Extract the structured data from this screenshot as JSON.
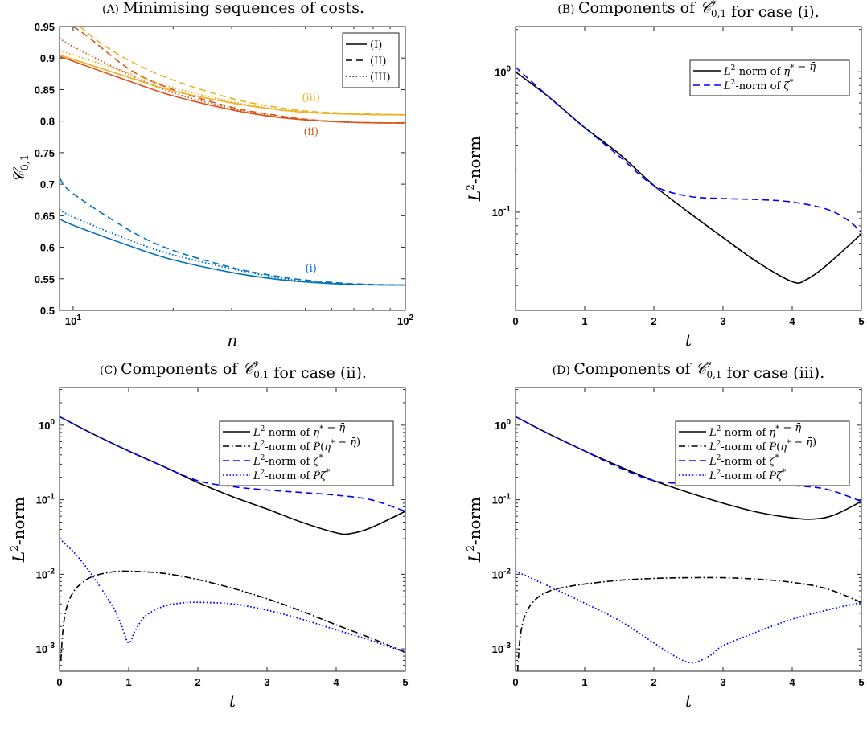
{
  "chart_data": [
    {
      "id": "A",
      "type": "line",
      "title": "(A) Minimising sequences of costs.",
      "xlabel": "n",
      "ylabel": "C_{0,1}",
      "xscale": "log",
      "xlim": [
        9.1,
        100
      ],
      "ylim": [
        0.5,
        0.95
      ],
      "grid": false,
      "legend_position": "top-right",
      "x_ticks": [
        {
          "v": 10,
          "label": "10",
          "sup": "1"
        },
        {
          "v": 100,
          "label": "10",
          "sup": "2"
        }
      ],
      "y_ticks": [
        {
          "v": 0.5,
          "label": "0.5"
        },
        {
          "v": 0.55,
          "label": "0.55"
        },
        {
          "v": 0.6,
          "label": "0.6"
        },
        {
          "v": 0.65,
          "label": "0.65"
        },
        {
          "v": 0.7,
          "label": "0.7"
        },
        {
          "v": 0.75,
          "label": "0.75"
        },
        {
          "v": 0.8,
          "label": "0.8"
        },
        {
          "v": 0.85,
          "label": "0.85"
        },
        {
          "v": 0.9,
          "label": "0.9"
        },
        {
          "v": 0.95,
          "label": "0.95"
        }
      ],
      "legend": [
        {
          "label": "(I)",
          "style": "solid",
          "color": "#000000"
        },
        {
          "label": "(II)",
          "style": "dashed",
          "color": "#000000"
        },
        {
          "label": "(III)",
          "style": "dotted",
          "color": "#000000"
        }
      ],
      "annotations": [
        {
          "text": "(iii)",
          "x": 52,
          "y": 0.832,
          "color": "#EDB120"
        },
        {
          "text": "(ii)",
          "x": 52,
          "y": 0.778,
          "color": "#D95319"
        },
        {
          "text": "(i)",
          "x": 52,
          "y": 0.561,
          "color": "#0072BD"
        }
      ],
      "series": [
        {
          "style": "solid",
          "color": "#0072BD",
          "x": [
            9.1,
            10,
            15,
            20,
            30,
            40,
            50,
            70,
            100
          ],
          "y": [
            0.645,
            0.635,
            0.601,
            0.58,
            0.56,
            0.55,
            0.545,
            0.541,
            0.54
          ]
        },
        {
          "style": "dashed",
          "color": "#0072BD",
          "x": [
            9.1,
            10,
            15,
            20,
            30,
            40,
            50,
            70,
            100
          ],
          "y": [
            0.71,
            0.685,
            0.625,
            0.595,
            0.568,
            0.555,
            0.548,
            0.542,
            0.54
          ]
        },
        {
          "style": "dotted",
          "color": "#0072BD",
          "x": [
            9.1,
            10,
            15,
            20,
            30,
            40,
            50,
            70,
            100
          ],
          "y": [
            0.66,
            0.648,
            0.61,
            0.588,
            0.566,
            0.553,
            0.546,
            0.541,
            0.54
          ]
        },
        {
          "style": "solid",
          "color": "#D95319",
          "x": [
            9.1,
            10,
            15,
            20,
            30,
            40,
            50,
            70,
            100
          ],
          "y": [
            0.903,
            0.895,
            0.862,
            0.84,
            0.818,
            0.807,
            0.802,
            0.798,
            0.797
          ]
        },
        {
          "style": "dashed",
          "color": "#D95319",
          "x": [
            10,
            11,
            15,
            20,
            30,
            40,
            50,
            70,
            100
          ],
          "y": [
            0.95,
            0.935,
            0.88,
            0.85,
            0.822,
            0.81,
            0.803,
            0.798,
            0.797
          ]
        },
        {
          "style": "dotted",
          "color": "#D95319",
          "x": [
            9.1,
            10,
            15,
            20,
            30,
            40,
            50,
            70,
            100
          ],
          "y": [
            0.932,
            0.918,
            0.872,
            0.845,
            0.82,
            0.808,
            0.802,
            0.798,
            0.797
          ]
        },
        {
          "style": "solid",
          "color": "#EDB120",
          "x": [
            9.1,
            10,
            15,
            20,
            30,
            40,
            50,
            70,
            100
          ],
          "y": [
            0.905,
            0.898,
            0.868,
            0.848,
            0.829,
            0.819,
            0.814,
            0.811,
            0.81
          ]
        },
        {
          "style": "dashed",
          "color": "#EDB120",
          "x": [
            10.5,
            12,
            15,
            20,
            30,
            40,
            50,
            70,
            100
          ],
          "y": [
            0.95,
            0.925,
            0.894,
            0.865,
            0.836,
            0.823,
            0.816,
            0.812,
            0.81
          ]
        },
        {
          "style": "dotted",
          "color": "#EDB120",
          "x": [
            9.1,
            10,
            15,
            20,
            30,
            40,
            50,
            70,
            100
          ],
          "y": [
            0.912,
            0.905,
            0.875,
            0.853,
            0.831,
            0.82,
            0.815,
            0.811,
            0.81
          ]
        }
      ]
    },
    {
      "id": "B",
      "type": "line",
      "title": "(B) Components of C*_{0,1} for case (i).",
      "xlabel": "t",
      "ylabel": "L2-norm",
      "yscale": "log",
      "xlim": [
        0,
        5
      ],
      "ylim": [
        0.02,
        2.1
      ],
      "grid": false,
      "legend_position": "top-right",
      "x_ticks": [
        {
          "v": 0,
          "label": "0"
        },
        {
          "v": 1,
          "label": "1"
        },
        {
          "v": 2,
          "label": "2"
        },
        {
          "v": 3,
          "label": "3"
        },
        {
          "v": 4,
          "label": "4"
        },
        {
          "v": 5,
          "label": "5"
        }
      ],
      "y_ticks": [
        {
          "v": 1,
          "label": "10",
          "sup": "0"
        },
        {
          "v": 0.1,
          "label": "10",
          "sup": "-1"
        }
      ],
      "legend": [
        {
          "label": "L²-norm of η* − η̄",
          "style": "solid",
          "color": "#000000"
        },
        {
          "label": "L²-norm of ζ*",
          "style": "dashed",
          "color": "#0000FF"
        }
      ],
      "series": [
        {
          "name": "L²-norm of η* − η̄",
          "style": "solid",
          "color": "#000000",
          "x": [
            0,
            0.5,
            1,
            1.5,
            2,
            2.5,
            3,
            3.5,
            4,
            4.2,
            4.5,
            5
          ],
          "y": [
            1.0,
            0.65,
            0.4,
            0.26,
            0.155,
            0.1,
            0.066,
            0.044,
            0.032,
            0.033,
            0.042,
            0.07
          ]
        },
        {
          "name": "L²-norm of ζ*",
          "style": "dashed",
          "color": "#0000FF",
          "x": [
            0,
            0.5,
            1,
            1.5,
            2,
            2.5,
            3,
            3.5,
            4,
            4.5,
            4.8,
            5
          ],
          "y": [
            1.08,
            0.65,
            0.4,
            0.25,
            0.155,
            0.13,
            0.125,
            0.123,
            0.118,
            0.105,
            0.088,
            0.072
          ]
        }
      ]
    },
    {
      "id": "C",
      "type": "line",
      "title": "(C) Components of C*_{0,1} for case (ii).",
      "xlabel": "t",
      "ylabel": "L2-norm",
      "yscale": "log",
      "xlim": [
        0,
        5
      ],
      "ylim": [
        0.0005,
        3.2
      ],
      "grid": false,
      "legend_position": "top-right",
      "x_ticks": [
        {
          "v": 0,
          "label": "0"
        },
        {
          "v": 1,
          "label": "1"
        },
        {
          "v": 2,
          "label": "2"
        },
        {
          "v": 3,
          "label": "3"
        },
        {
          "v": 4,
          "label": "4"
        },
        {
          "v": 5,
          "label": "5"
        }
      ],
      "y_ticks": [
        {
          "v": 1,
          "label": "10",
          "sup": "0"
        },
        {
          "v": 0.1,
          "label": "10",
          "sup": "-1"
        },
        {
          "v": 0.01,
          "label": "10",
          "sup": "-2"
        },
        {
          "v": 0.001,
          "label": "10",
          "sup": "-3"
        }
      ],
      "legend": [
        {
          "label": "L²-norm of η* − η̄",
          "style": "solid",
          "color": "#000000"
        },
        {
          "label": "L²-norm of P̃(η* − η̄)",
          "style": "dashdot",
          "color": "#000000"
        },
        {
          "label": "L²-norm of ζ*",
          "style": "dashed",
          "color": "#0000FF"
        },
        {
          "label": "L²-norm of P̃ζ*",
          "style": "dotted",
          "color": "#0000FF"
        }
      ],
      "series": [
        {
          "name": "L²-norm of η* − η̄",
          "style": "solid",
          "color": "#000000",
          "x": [
            0,
            0.5,
            1,
            1.5,
            2,
            2.5,
            3,
            3.5,
            4,
            4.2,
            4.5,
            5
          ],
          "y": [
            1.3,
            0.75,
            0.45,
            0.28,
            0.17,
            0.11,
            0.075,
            0.05,
            0.036,
            0.035,
            0.042,
            0.07
          ]
        },
        {
          "name": "L²-norm of P̃(η* − η̄)",
          "style": "dashdot",
          "color": "#000000",
          "x": [
            0.02,
            0.05,
            0.1,
            0.2,
            0.35,
            0.5,
            0.75,
            1,
            1.5,
            2,
            2.5,
            3,
            3.5,
            4,
            4.5,
            5
          ],
          "y": [
            0.0007,
            0.0018,
            0.0035,
            0.0058,
            0.008,
            0.0095,
            0.0107,
            0.011,
            0.0103,
            0.0085,
            0.0065,
            0.0047,
            0.0032,
            0.0021,
            0.0014,
            0.0009
          ]
        },
        {
          "name": "L²-norm of ζ*",
          "style": "dashed",
          "color": "#0000FF",
          "x": [
            0,
            0.5,
            1,
            1.5,
            2,
            2.5,
            3,
            3.5,
            4,
            4.5,
            5
          ],
          "y": [
            1.3,
            0.75,
            0.45,
            0.28,
            0.18,
            0.15,
            0.135,
            0.125,
            0.115,
            0.1,
            0.07
          ]
        },
        {
          "name": "L²-norm of P̃ζ*",
          "style": "dotted",
          "color": "#0000FF",
          "x": [
            0,
            0.2,
            0.4,
            0.6,
            0.8,
            0.9,
            1,
            1.1,
            1.25,
            1.5,
            1.75,
            2,
            2.5,
            3,
            3.5,
            4,
            4.5,
            5
          ],
          "y": [
            0.03,
            0.02,
            0.012,
            0.0065,
            0.0033,
            0.002,
            0.0012,
            0.0018,
            0.0028,
            0.0037,
            0.0041,
            0.0042,
            0.004,
            0.0033,
            0.0025,
            0.0018,
            0.0013,
            0.0009
          ]
        }
      ]
    },
    {
      "id": "D",
      "type": "line",
      "title": "(D) Components of C*_{0,1} for case (iii).",
      "xlabel": "t",
      "ylabel": "L2-norm",
      "yscale": "log",
      "xlim": [
        0,
        5
      ],
      "ylim": [
        0.0005,
        3.2
      ],
      "grid": false,
      "legend_position": "top-right",
      "x_ticks": [
        {
          "v": 0,
          "label": "0"
        },
        {
          "v": 1,
          "label": "1"
        },
        {
          "v": 2,
          "label": "2"
        },
        {
          "v": 3,
          "label": "3"
        },
        {
          "v": 4,
          "label": "4"
        },
        {
          "v": 5,
          "label": "5"
        }
      ],
      "y_ticks": [
        {
          "v": 1,
          "label": "10",
          "sup": "0"
        },
        {
          "v": 0.1,
          "label": "10",
          "sup": "-1"
        },
        {
          "v": 0.01,
          "label": "10",
          "sup": "-2"
        },
        {
          "v": 0.001,
          "label": "10",
          "sup": "-3"
        }
      ],
      "legend": [
        {
          "label": "L²-norm of η* − η̄",
          "style": "solid",
          "color": "#000000"
        },
        {
          "label": "L²-norm of P̃(η* − η̄)",
          "style": "dashdot",
          "color": "#000000"
        },
        {
          "label": "L²-norm of ζ*",
          "style": "dashed",
          "color": "#0000FF"
        },
        {
          "label": "L²-norm of P̃ζ*",
          "style": "dotted",
          "color": "#0000FF"
        }
      ],
      "series": [
        {
          "name": "L²-norm of η* − η̄",
          "style": "solid",
          "color": "#000000",
          "x": [
            0,
            0.5,
            1,
            1.5,
            2,
            2.5,
            3,
            3.5,
            4,
            4.3,
            4.6,
            5
          ],
          "y": [
            1.3,
            0.75,
            0.45,
            0.28,
            0.18,
            0.125,
            0.09,
            0.068,
            0.057,
            0.055,
            0.062,
            0.095
          ]
        },
        {
          "name": "L²-norm of P̃(η* − η̄)",
          "style": "dashdot",
          "color": "#000000",
          "x": [
            0.03,
            0.07,
            0.15,
            0.3,
            0.5,
            0.75,
            1,
            1.5,
            2,
            2.5,
            3,
            3.5,
            4,
            4.5,
            5
          ],
          "y": [
            0.0005,
            0.0015,
            0.003,
            0.0047,
            0.006,
            0.0068,
            0.0074,
            0.0083,
            0.0088,
            0.009,
            0.009,
            0.0086,
            0.0078,
            0.0064,
            0.0042
          ]
        },
        {
          "name": "L²-norm of ζ*",
          "style": "dashed",
          "color": "#0000FF",
          "x": [
            0,
            0.5,
            1,
            1.5,
            2,
            2.5,
            3,
            3.5,
            4,
            4.5,
            5
          ],
          "y": [
            1.3,
            0.75,
            0.45,
            0.27,
            0.18,
            0.165,
            0.16,
            0.16,
            0.155,
            0.138,
            0.095
          ]
        },
        {
          "name": "L²-norm of P̃ζ*",
          "style": "dotted",
          "color": "#0000FF",
          "x": [
            0,
            0.5,
            1,
            1.5,
            2,
            2.3,
            2.55,
            2.8,
            3,
            3.5,
            4,
            4.5,
            5
          ],
          "y": [
            0.011,
            0.0068,
            0.0041,
            0.0024,
            0.0012,
            0.0008,
            0.00065,
            0.0008,
            0.0011,
            0.0017,
            0.0025,
            0.0033,
            0.0042
          ]
        }
      ]
    }
  ]
}
